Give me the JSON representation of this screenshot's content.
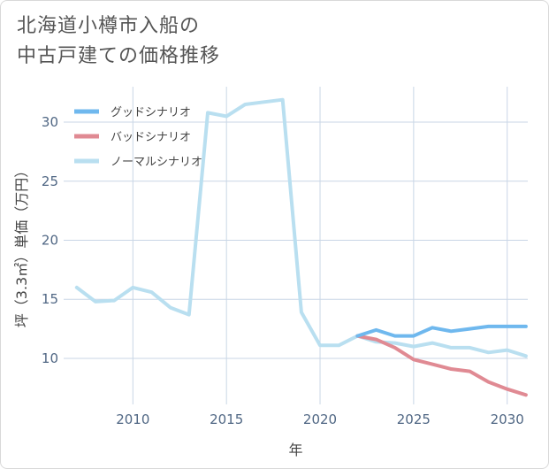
{
  "title_lines": [
    "北海道小樽市入船の",
    "中古戸建ての価格推移"
  ],
  "colors": {
    "good": "#6fb8ee",
    "bad": "#e08a93",
    "normal": "#b9dff0",
    "grid": "#c9d6e6",
    "tick": "#506784"
  },
  "chart_data": {
    "type": "line",
    "title": "北海道小樽市入船の中古戸建ての価格推移",
    "xlabel": "年",
    "ylabel": "坪（3.3㎡）単価（万円）",
    "xlim": [
      2006.3,
      2031.1
    ],
    "ylim": [
      6.1,
      33
    ],
    "x_ticks": [
      2010,
      2015,
      2020,
      2025,
      2030
    ],
    "y_ticks": [
      10,
      15,
      20,
      25,
      30
    ],
    "legend_position": "top-left",
    "series": [
      {
        "name": "グッドシナリオ",
        "color": "#6fb8ee",
        "x": [
          2022,
          2023,
          2024,
          2025,
          2026,
          2027,
          2028,
          2029,
          2030,
          2031
        ],
        "values": [
          11.9,
          12.4,
          11.9,
          11.9,
          12.6,
          12.3,
          12.5,
          12.7,
          12.7,
          12.7
        ]
      },
      {
        "name": "バッドシナリオ",
        "color": "#e08a93",
        "x": [
          2022,
          2023,
          2024,
          2025,
          2026,
          2027,
          2028,
          2029,
          2030,
          2031
        ],
        "values": [
          11.9,
          11.6,
          10.9,
          9.9,
          9.5,
          9.1,
          8.9,
          8.0,
          7.4,
          6.9
        ]
      },
      {
        "name": "ノーマルシナリオ",
        "color": "#b9dff0",
        "x": [
          2007,
          2008,
          2009,
          2010,
          2011,
          2012,
          2013,
          2014,
          2015,
          2016,
          2017,
          2018,
          2019,
          2020,
          2021,
          2022,
          2023,
          2024,
          2025,
          2026,
          2027,
          2028,
          2029,
          2030,
          2031
        ],
        "values": [
          16.0,
          14.8,
          14.9,
          16.0,
          15.6,
          14.3,
          13.7,
          30.8,
          30.5,
          31.5,
          31.7,
          31.9,
          13.9,
          11.1,
          11.1,
          11.9,
          11.4,
          11.3,
          11.0,
          11.3,
          10.9,
          10.9,
          10.5,
          10.7,
          10.2
        ]
      }
    ]
  }
}
